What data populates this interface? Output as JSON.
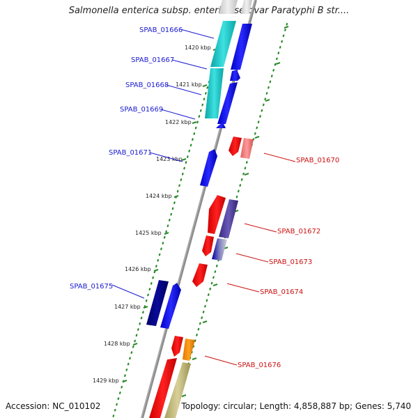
{
  "title": "Salmonella enterica subsp. enterica serovar Paratyphi B str....",
  "footer": {
    "accession": "Accession: NC_010102",
    "summary": "Topology: circular; Length: 4,858,887 bp; Genes: 5,740"
  },
  "colors": {
    "backbone": "#8c8c8c",
    "ticks": "#2a8a2a",
    "forward_label": "#1a1ad0",
    "reverse_label": "#cc1010"
  },
  "kbp_labels": [
    "1420 kbp",
    "1421 kbp",
    "1422 kbp",
    "1423 kbp",
    "1424 kbp",
    "1425 kbp",
    "1426 kbp",
    "1427 kbp",
    "1428 kbp",
    "1429 kbp"
  ],
  "gene_labels_left": [
    "SPAB_01666",
    "SPAB_01667",
    "SPAB_01668",
    "SPAB_01669",
    "SPAB_01671",
    "SPAB_01675"
  ],
  "gene_labels_right": [
    "SPAB_01670",
    "SPAB_01672",
    "SPAB_01673",
    "SPAB_01674",
    "SPAB_01676"
  ]
}
